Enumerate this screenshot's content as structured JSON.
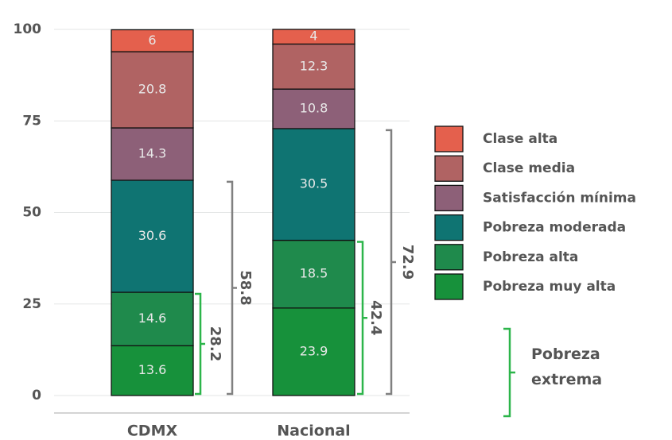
{
  "chart_data": {
    "type": "stacked_bar",
    "categories": [
      "CDMX",
      "Nacional"
    ],
    "series": [
      {
        "name": "Pobreza muy alta",
        "color": "#17913b",
        "values": [
          13.6,
          23.9
        ]
      },
      {
        "name": "Pobreza alta",
        "color": "#1f8a4c",
        "values": [
          14.6,
          18.5
        ]
      },
      {
        "name": "Pobreza moderada",
        "color": "#0f7472",
        "values": [
          30.6,
          30.5
        ]
      },
      {
        "name": "Satisfacción mínima",
        "color": "#8d6078",
        "values": [
          14.3,
          10.8
        ]
      },
      {
        "name": "Clase media",
        "color": "#b06363",
        "values": [
          20.8,
          12.3
        ]
      },
      {
        "name": "Clase alta",
        "color": "#e4604d",
        "values": [
          6,
          4
        ]
      }
    ],
    "ylim": [
      0,
      100
    ],
    "yticks": [
      0,
      25,
      50,
      75,
      100
    ],
    "grid": true,
    "brackets": [
      {
        "category": "CDMX",
        "value": 58.8,
        "color": "#808080"
      },
      {
        "category": "CDMX",
        "value": 28.2,
        "color": "#2cb54a"
      },
      {
        "category": "Nacional",
        "value": 72.9,
        "color": "#808080"
      },
      {
        "category": "Nacional",
        "value": 42.4,
        "color": "#2cb54a"
      }
    ],
    "bracket_legend": {
      "label": "Pobreza extrema",
      "color": "#2cb54a"
    }
  }
}
